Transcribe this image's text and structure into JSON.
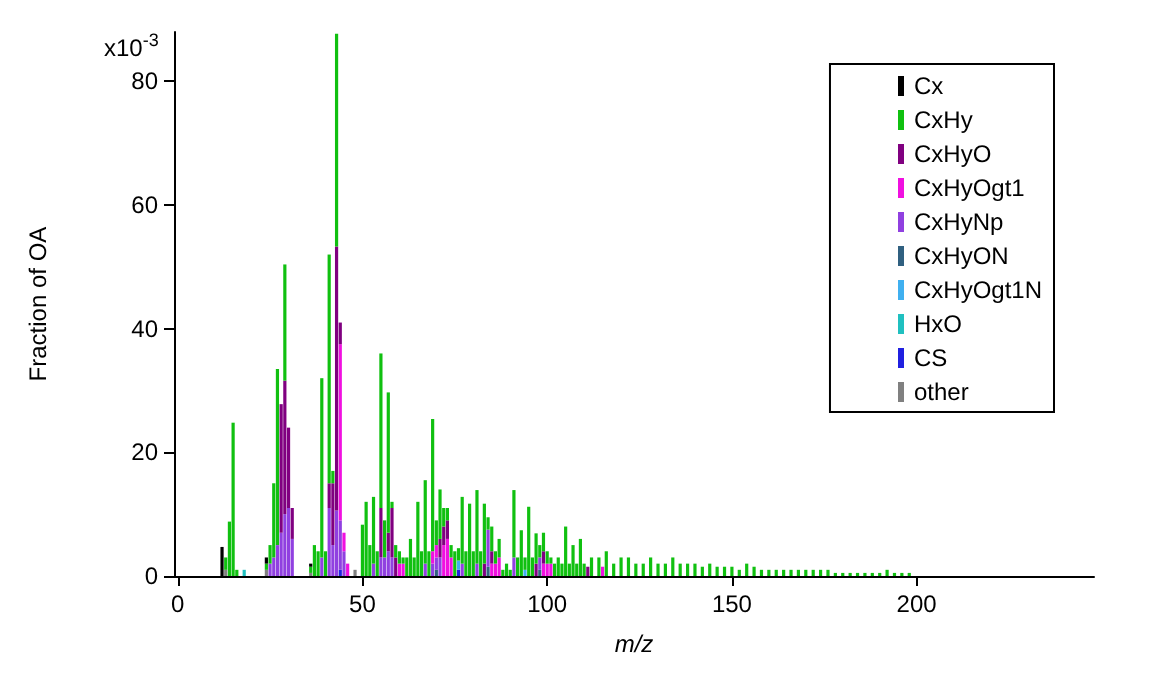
{
  "chart_data": {
    "type": "bar",
    "stacked": true,
    "xlabel": "m/z",
    "ylabel": "Fraction of OA",
    "xlim": [
      -1,
      248
    ],
    "xticks": [
      0,
      50,
      100,
      150,
      200
    ],
    "ylim": [
      0,
      88
    ],
    "yticks": [
      0,
      20,
      40,
      60,
      80
    ],
    "annotations": [
      "x10$^{-3}$"
    ],
    "grid": false,
    "legend": "top right",
    "x": [
      12,
      13,
      14,
      15,
      16,
      18,
      24,
      25,
      26,
      27,
      28,
      29,
      30,
      31,
      36,
      37,
      38,
      39,
      40,
      41,
      42,
      43,
      44,
      45,
      46,
      48,
      50,
      51,
      52,
      53,
      54,
      55,
      56,
      57,
      58,
      59,
      60,
      61,
      62,
      63,
      64,
      65,
      66,
      67,
      68,
      69,
      70,
      71,
      72,
      73,
      74,
      75,
      76,
      77,
      78,
      79,
      80,
      81,
      82,
      83,
      84,
      85,
      86,
      87,
      88,
      89,
      90,
      91,
      92,
      93,
      94,
      95,
      96,
      97,
      98,
      99,
      100,
      101,
      102,
      103,
      104,
      105,
      106,
      107,
      108,
      109,
      110,
      111,
      112,
      114,
      115,
      116,
      118,
      120,
      122,
      124,
      126,
      128,
      130,
      132,
      134,
      136,
      138,
      140,
      142,
      144,
      146,
      148,
      150,
      152,
      154,
      156,
      158,
      160,
      162,
      164,
      166,
      168,
      170,
      172,
      174,
      176,
      178,
      180,
      182,
      184,
      186,
      188,
      190,
      192,
      194,
      196,
      198
    ],
    "series": [
      {
        "name": "other",
        "color": "#808080",
        "values": [
          null,
          1,
          null,
          null,
          null,
          null,
          1,
          null,
          null,
          null,
          null,
          null,
          null,
          null,
          0.5,
          null,
          null,
          null,
          null,
          null,
          null,
          null,
          null,
          null,
          null,
          1,
          null,
          null,
          null,
          null,
          null,
          null,
          null,
          null,
          null,
          null,
          null,
          null,
          null,
          null,
          null,
          null,
          null,
          null,
          null,
          null,
          null,
          null,
          null,
          null,
          null,
          null,
          null,
          null,
          null,
          null,
          null,
          null,
          null,
          null,
          null,
          null,
          null,
          null,
          null,
          null,
          null,
          null,
          null,
          null,
          null,
          null,
          null,
          null,
          null,
          null,
          null,
          null,
          null,
          null,
          null,
          null,
          null,
          null,
          null,
          null,
          null,
          null,
          null,
          null,
          null,
          null,
          null,
          null,
          null,
          null,
          null,
          null,
          null,
          null,
          null,
          null,
          null,
          null,
          null,
          null,
          null,
          null,
          null,
          null,
          null,
          null,
          null,
          null,
          null,
          null,
          null,
          null,
          null,
          null,
          null,
          null,
          null,
          null,
          null,
          null,
          null,
          null,
          null,
          null,
          null,
          null,
          null
        ]
      },
      {
        "name": "CS",
        "color": "#2020e0",
        "values": [
          null,
          null,
          null,
          null,
          null,
          null,
          null,
          null,
          null,
          null,
          null,
          null,
          null,
          null,
          null,
          null,
          null,
          null,
          null,
          null,
          null,
          null,
          1,
          null,
          null,
          null,
          null,
          null,
          null,
          null,
          null,
          null,
          null,
          null,
          null,
          null,
          null,
          null,
          null,
          null,
          null,
          null,
          null,
          null,
          null,
          null,
          null,
          null,
          null,
          null,
          null,
          null,
          1,
          null,
          null,
          null,
          null,
          null,
          null,
          null,
          null,
          null,
          null,
          null,
          null,
          null,
          null,
          null,
          null,
          null,
          null,
          null,
          null,
          null,
          null,
          null,
          null,
          null,
          null,
          null,
          null,
          null,
          null,
          null,
          null,
          null,
          null,
          null,
          null,
          null,
          null,
          null,
          null,
          null,
          null,
          null,
          null,
          null,
          null,
          null,
          null,
          null,
          null,
          null,
          null,
          null,
          null,
          null,
          null,
          null,
          null,
          null,
          null,
          null,
          null,
          null,
          null,
          null,
          null,
          null,
          null,
          null,
          null,
          null,
          null,
          null,
          null,
          null,
          null,
          null,
          null,
          null,
          null
        ]
      },
      {
        "name": "HxO",
        "color": "#20c0c0",
        "values": [
          null,
          null,
          null,
          null,
          null,
          1,
          null,
          null,
          null,
          null,
          null,
          null,
          null,
          null,
          null,
          null,
          null,
          null,
          null,
          null,
          null,
          null,
          null,
          null,
          null,
          null,
          null,
          null,
          null,
          null,
          null,
          null,
          null,
          null,
          null,
          null,
          null,
          null,
          null,
          null,
          null,
          null,
          null,
          null,
          null,
          null,
          null,
          null,
          null,
          null,
          null,
          null,
          null,
          null,
          null,
          null,
          null,
          null,
          null,
          null,
          null,
          null,
          null,
          null,
          null,
          null,
          null,
          null,
          null,
          null,
          null,
          null,
          null,
          null,
          null,
          null,
          null,
          null,
          null,
          null,
          null,
          null,
          null,
          null,
          null,
          null,
          null,
          null,
          null,
          null,
          null,
          null,
          null,
          null,
          null,
          null,
          null,
          null,
          null,
          null,
          null,
          null,
          null,
          null,
          null,
          null,
          null,
          null,
          null,
          null,
          null,
          null,
          null,
          null,
          null,
          null,
          null,
          null,
          null,
          null,
          null,
          null,
          null,
          null,
          null,
          null,
          null,
          null,
          null,
          null,
          null,
          null,
          null
        ]
      },
      {
        "name": "CxHyOgt1N",
        "color": "#40b0f0",
        "values": [
          null,
          null,
          null,
          null,
          null,
          null,
          null,
          null,
          null,
          null,
          null,
          null,
          null,
          null,
          null,
          null,
          null,
          null,
          null,
          null,
          null,
          null,
          null,
          null,
          null,
          null,
          null,
          null,
          null,
          null,
          null,
          null,
          null,
          null,
          null,
          null,
          null,
          null,
          null,
          null,
          null,
          null,
          null,
          null,
          null,
          null,
          null,
          null,
          null,
          null,
          null,
          null,
          1.5,
          null,
          null,
          null,
          null,
          null,
          null,
          null,
          null,
          null,
          null,
          null,
          null,
          null,
          null,
          null,
          null,
          null,
          1,
          null,
          null,
          null,
          null,
          null,
          null,
          null,
          null,
          null,
          null,
          null,
          null,
          null,
          null,
          null,
          null,
          null,
          null,
          null,
          null,
          null,
          null,
          null,
          null,
          null,
          null,
          null,
          null,
          null,
          null,
          null,
          null,
          null,
          null,
          null,
          null,
          null,
          null,
          null,
          null,
          null,
          null,
          null,
          null,
          null,
          null,
          null,
          null,
          null,
          null,
          null,
          null,
          null,
          null,
          null,
          null,
          null,
          null,
          null,
          null,
          null,
          null
        ]
      },
      {
        "name": "CxHyON",
        "color": "#306080",
        "values": [
          null,
          null,
          null,
          null,
          null,
          null,
          null,
          null,
          null,
          null,
          null,
          null,
          null,
          null,
          null,
          null,
          null,
          null,
          null,
          null,
          null,
          null,
          null,
          null,
          null,
          null,
          null,
          null,
          null,
          null,
          null,
          null,
          null,
          null,
          null,
          null,
          null,
          null,
          null,
          null,
          null,
          null,
          null,
          null,
          null,
          null,
          1,
          null,
          null,
          null,
          null,
          null,
          null,
          null,
          null,
          null,
          null,
          null,
          null,
          null,
          1.5,
          null,
          null,
          null,
          null,
          null,
          null,
          null,
          null,
          null,
          null,
          null,
          null,
          null,
          1,
          null,
          null,
          null,
          null,
          null,
          null,
          null,
          null,
          null,
          null,
          null,
          null,
          null,
          null,
          null,
          null,
          null,
          null,
          null,
          null,
          null,
          null,
          null,
          null,
          null,
          null,
          null,
          null,
          null,
          null,
          null,
          null,
          null,
          null,
          null,
          null,
          null,
          null,
          null,
          null,
          null,
          null,
          null,
          null,
          null,
          null,
          null,
          null,
          null,
          null,
          null,
          null,
          null,
          null,
          null,
          null,
          null,
          null
        ]
      },
      {
        "name": "CxHyNp",
        "color": "#9040e0",
        "values": [
          null,
          null,
          null,
          null,
          null,
          null,
          null,
          2,
          3,
          5,
          7,
          10,
          11,
          6,
          null,
          null,
          null,
          3,
          null,
          11,
          5,
          10.6,
          8,
          4,
          null,
          null,
          null,
          null,
          null,
          2,
          null,
          3,
          3,
          4,
          3,
          null,
          null,
          null,
          null,
          null,
          null,
          null,
          null,
          2,
          null,
          2,
          2,
          3,
          null,
          null,
          null,
          null,
          null,
          2,
          null,
          null,
          null,
          2,
          null,
          null,
          6,
          null,
          null,
          null,
          null,
          null,
          null,
          3,
          null,
          null,
          null,
          null,
          null,
          null,
          2,
          null,
          null,
          null,
          null,
          null,
          null,
          null,
          null,
          null,
          null,
          null,
          null,
          null,
          null,
          null,
          null,
          null,
          null,
          null,
          null,
          null,
          null,
          null,
          null,
          null,
          null,
          null,
          null,
          null,
          null,
          null,
          null,
          null,
          null,
          null,
          null,
          null,
          null,
          null,
          null,
          null,
          null,
          null,
          null,
          null,
          null,
          null,
          null,
          null,
          null,
          null,
          null,
          null,
          null,
          null,
          null,
          null,
          null
        ]
      },
      {
        "name": "CxHyOgt1",
        "color": "#f010e0",
        "values": [
          null,
          null,
          null,
          null,
          null,
          null,
          null,
          null,
          null,
          null,
          null,
          null,
          null,
          null,
          null,
          null,
          null,
          null,
          null,
          null,
          null,
          null,
          28.5,
          3,
          2,
          null,
          null,
          null,
          null,
          null,
          null,
          null,
          null,
          null,
          null,
          null,
          2,
          2,
          null,
          null,
          null,
          null,
          null,
          null,
          null,
          2,
          2,
          null,
          5,
          6,
          3,
          null,
          null,
          null,
          null,
          null,
          null,
          null,
          null,
          null,
          null,
          2,
          2,
          3,
          null,
          null,
          null,
          null,
          null,
          null,
          null,
          null,
          null,
          null,
          null,
          2,
          2,
          2,
          null,
          null,
          null,
          null,
          null,
          null,
          null,
          null,
          null,
          null,
          null,
          null,
          1.5,
          null,
          null,
          null,
          null,
          null,
          null,
          null,
          null,
          null,
          null,
          null,
          null,
          null,
          null,
          null,
          null,
          null,
          null,
          null,
          null,
          null,
          null,
          null,
          null,
          null,
          null,
          null,
          null,
          null,
          null,
          null,
          null,
          null,
          null,
          null,
          null,
          null,
          null,
          null,
          null,
          null,
          null
        ]
      },
      {
        "name": "CxHyO",
        "color": "#800080",
        "values": [
          null,
          null,
          null,
          null,
          null,
          null,
          null,
          null,
          null,
          null,
          20.8,
          21.6,
          13,
          5,
          null,
          null,
          null,
          null,
          null,
          4,
          10,
          42.7,
          3.5,
          null,
          null,
          null,
          null,
          null,
          null,
          null,
          null,
          8,
          null,
          3,
          8,
          3,
          null,
          null,
          null,
          null,
          null,
          null,
          null,
          null,
          null,
          null,
          null,
          3,
          3,
          3,
          null,
          null,
          null,
          null,
          null,
          null,
          null,
          null,
          null,
          2,
          null,
          2,
          null,
          null,
          null,
          null,
          null,
          null,
          null,
          null,
          null,
          null,
          null,
          2,
          null,
          2,
          null,
          null,
          null,
          null,
          null,
          null,
          null,
          null,
          null,
          null,
          null,
          1.5,
          null,
          null,
          null,
          null,
          null,
          null,
          null,
          null,
          null,
          null,
          null,
          null,
          null,
          null,
          null,
          null,
          null,
          null,
          null,
          null,
          null,
          null,
          null,
          null,
          null,
          null,
          null,
          null,
          null,
          null,
          null,
          null,
          null,
          null,
          null,
          null,
          null,
          null,
          null,
          null,
          null,
          null,
          null,
          null,
          null
        ]
      },
      {
        "name": "CxHy",
        "color": "#10c010",
        "values": [
          null,
          2,
          8.8,
          24.8,
          1,
          null,
          1,
          3,
          12,
          28.5,
          null,
          18.8,
          null,
          null,
          1,
          5,
          4,
          29,
          4,
          37,
          2,
          34.4,
          null,
          null,
          null,
          null,
          8.3,
          12,
          5,
          10.8,
          4,
          25,
          6,
          22.7,
          1,
          2,
          2,
          1,
          3,
          6,
          3,
          12,
          4,
          13.5,
          4,
          21.4,
          4,
          8,
          3,
          2,
          2,
          4,
          2,
          10.8,
          4,
          11.7,
          4,
          11.9,
          4,
          9.7,
          2,
          4,
          2,
          3,
          1,
          2,
          1,
          10.9,
          3,
          7.4,
          2,
          11.2,
          3,
          4.9,
          2,
          3,
          2,
          1,
          2,
          3,
          2,
          8,
          2,
          5,
          2,
          6,
          2,
          null,
          3,
          3,
          null,
          4,
          2,
          3,
          3,
          2,
          2,
          3,
          2,
          2,
          3,
          2,
          2,
          2,
          1.5,
          2,
          1.5,
          1.5,
          1.5,
          1,
          2,
          1.5,
          1,
          1,
          1,
          1,
          1,
          1,
          1,
          1,
          1,
          1,
          0.5,
          0.5,
          0.5,
          0.5,
          0.5,
          0.5,
          0.5,
          1,
          0.5,
          0.5,
          0.5
        ]
      },
      {
        "name": "Cx",
        "color": "#000000",
        "values": [
          4.7,
          null,
          null,
          null,
          null,
          null,
          1,
          null,
          null,
          null,
          null,
          null,
          null,
          null,
          0.5,
          null,
          null,
          null,
          null,
          null,
          null,
          null,
          null,
          null,
          null,
          null,
          null,
          null,
          null,
          null,
          null,
          null,
          null,
          null,
          null,
          null,
          null,
          null,
          null,
          null,
          null,
          null,
          null,
          null,
          null,
          null,
          null,
          null,
          null,
          null,
          null,
          null,
          null,
          null,
          null,
          null,
          null,
          null,
          null,
          null,
          null,
          null,
          null,
          null,
          null,
          null,
          null,
          null,
          null,
          null,
          null,
          null,
          null,
          null,
          null,
          null,
          null,
          null,
          null,
          null,
          null,
          null,
          null,
          null,
          null,
          null,
          null,
          null,
          null,
          null,
          null,
          null,
          null,
          null,
          null,
          null,
          null,
          null,
          null,
          null,
          null,
          null,
          null,
          null,
          null,
          null,
          null,
          null,
          null,
          null,
          null,
          null,
          null,
          null,
          null,
          null,
          null,
          null,
          null,
          null,
          null,
          null,
          null,
          null,
          null,
          null,
          null,
          null,
          null,
          null,
          null,
          null,
          null
        ]
      }
    ]
  }
}
